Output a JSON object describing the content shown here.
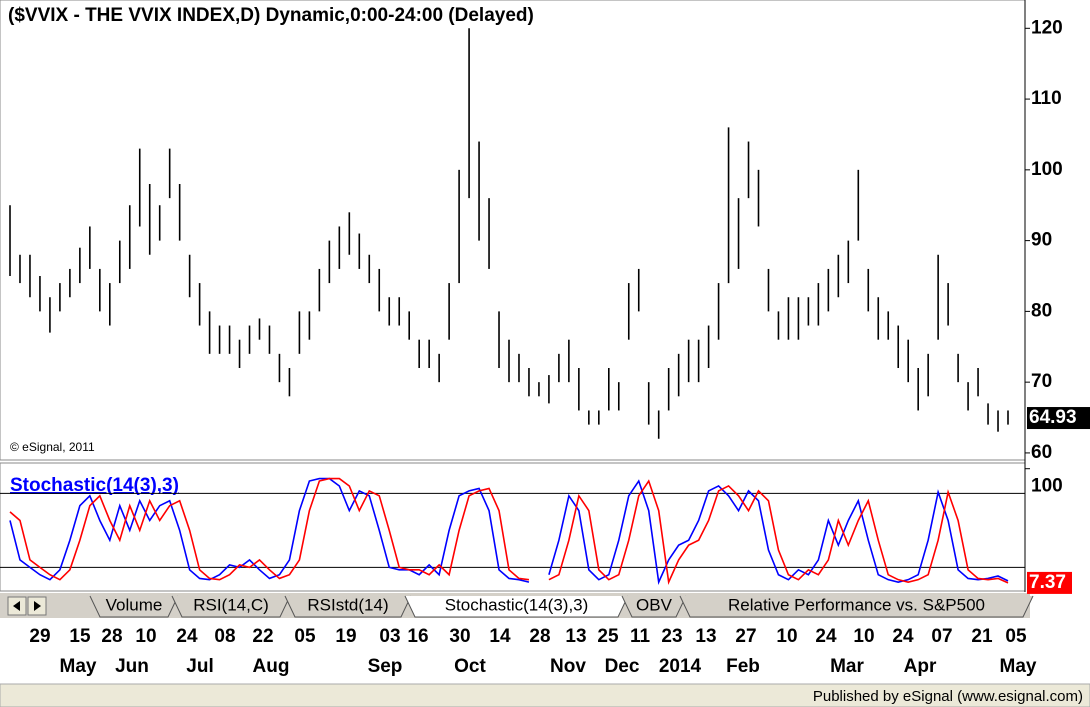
{
  "chart_data": [
    {
      "type": "ohlc",
      "title": "($VVIX - THE VVIX INDEX,D) Dynamic,0:00-24:00 (Delayed)",
      "annotation": "© eSignal, 2011",
      "color": "#000000",
      "ylim": [
        59,
        124
      ],
      "yticks": [
        60,
        70,
        80,
        90,
        100,
        110,
        120
      ],
      "last_value": 64.93,
      "high": [
        95,
        88,
        88,
        85,
        82,
        84,
        86,
        89,
        92,
        86,
        84,
        90,
        95,
        103,
        98,
        95,
        103,
        98,
        88,
        84,
        80,
        78,
        78,
        76,
        78,
        79,
        78,
        74,
        72,
        80,
        80,
        86,
        90,
        92,
        94,
        91,
        88,
        86,
        82,
        82,
        80,
        76,
        76,
        74,
        84,
        100,
        120,
        104,
        96,
        80,
        76,
        74,
        72,
        70,
        71,
        74,
        76,
        72,
        66,
        66,
        72,
        70,
        84,
        86,
        70,
        66,
        72,
        74,
        76,
        76,
        78,
        84,
        106,
        96,
        104,
        100,
        86,
        80,
        82,
        82,
        82,
        84,
        86,
        88,
        90,
        100,
        86,
        82,
        80,
        78,
        76,
        72,
        74,
        88,
        84,
        74,
        70,
        72,
        67,
        66,
        66
      ],
      "low": [
        85,
        84,
        82,
        80,
        77,
        80,
        82,
        84,
        86,
        80,
        78,
        84,
        86,
        92,
        88,
        90,
        96,
        90,
        82,
        78,
        74,
        74,
        74,
        72,
        74,
        76,
        74,
        70,
        68,
        74,
        76,
        80,
        84,
        86,
        88,
        86,
        84,
        80,
        78,
        78,
        76,
        72,
        72,
        70,
        76,
        84,
        96,
        90,
        86,
        72,
        70,
        70,
        68,
        68,
        67,
        70,
        70,
        66,
        64,
        64,
        66,
        66,
        76,
        80,
        64,
        62,
        66,
        68,
        70,
        70,
        72,
        76,
        84,
        86,
        96,
        92,
        80,
        76,
        76,
        76,
        78,
        78,
        80,
        82,
        84,
        90,
        80,
        76,
        76,
        72,
        70,
        66,
        68,
        76,
        78,
        70,
        66,
        68,
        64,
        63,
        64
      ]
    },
    {
      "type": "line",
      "title": "Stochastic(14(3),3)",
      "ylim": [
        0,
        103
      ],
      "yticks": [
        100
      ],
      "levels": [
        80,
        20
      ],
      "last_value": 7.37,
      "series": [
        {
          "color": "#0000ff",
          "values": [
            58,
            26,
            20,
            14,
            10,
            18,
            42,
            70,
            78,
            58,
            42,
            70,
            50,
            74,
            58,
            70,
            74,
            50,
            18,
            11,
            10,
            14,
            22,
            20,
            26,
            18,
            11,
            14,
            26,
            66,
            90,
            92,
            92,
            86,
            66,
            82,
            78,
            50,
            20,
            18,
            18,
            14,
            22,
            14,
            50,
            78,
            82,
            84,
            66,
            18,
            11,
            10,
            8,
            null,
            14,
            42,
            78,
            66,
            18,
            10,
            14,
            42,
            78,
            90,
            66,
            8,
            26,
            38,
            42,
            58,
            82,
            86,
            78,
            66,
            82,
            74,
            34,
            14,
            10,
            18,
            14,
            26,
            58,
            38,
            58,
            74,
            42,
            14,
            10,
            8,
            10,
            14,
            42,
            81,
            58,
            18,
            11,
            10,
            11,
            13,
            9
          ]
        },
        {
          "color": "#ff0000",
          "values": [
            65,
            58,
            26,
            20,
            14,
            10,
            18,
            42,
            70,
            78,
            58,
            42,
            70,
            50,
            74,
            58,
            70,
            74,
            50,
            18,
            11,
            10,
            14,
            22,
            20,
            26,
            18,
            11,
            14,
            26,
            66,
            90,
            92,
            92,
            86,
            66,
            82,
            78,
            50,
            20,
            18,
            18,
            14,
            22,
            14,
            50,
            78,
            82,
            84,
            66,
            18,
            11,
            10,
            null,
            10,
            14,
            42,
            78,
            66,
            18,
            10,
            14,
            42,
            78,
            90,
            66,
            8,
            26,
            38,
            42,
            58,
            82,
            86,
            78,
            66,
            82,
            74,
            34,
            14,
            10,
            18,
            14,
            26,
            58,
            38,
            58,
            74,
            42,
            14,
            10,
            8,
            10,
            14,
            42,
            81,
            58,
            18,
            11,
            10,
            11,
            7.37
          ]
        }
      ]
    }
  ],
  "tabs": [
    "Volume",
    "RSI(14,C)",
    "RSIstd(14)",
    "Stochastic(14(3),3)",
    "OBV",
    "Relative Performance vs. S&P500"
  ],
  "date_axis": {
    "days": [
      "29",
      "15",
      "28",
      "10",
      "24",
      "08",
      "22",
      "05",
      "19",
      "03",
      "16",
      "30",
      "14",
      "28",
      "13",
      "25",
      "11",
      "23",
      "13",
      "27",
      "10",
      "24",
      "10",
      "24",
      "07",
      "21",
      "05"
    ],
    "months": [
      "May",
      "Jun",
      "Jul",
      "Aug",
      "Sep",
      "Oct",
      "Nov",
      "Dec",
      "2014",
      "Feb",
      "Mar",
      "Apr",
      "May"
    ]
  },
  "footer": "Published by eSignal (www.esignal.com)"
}
